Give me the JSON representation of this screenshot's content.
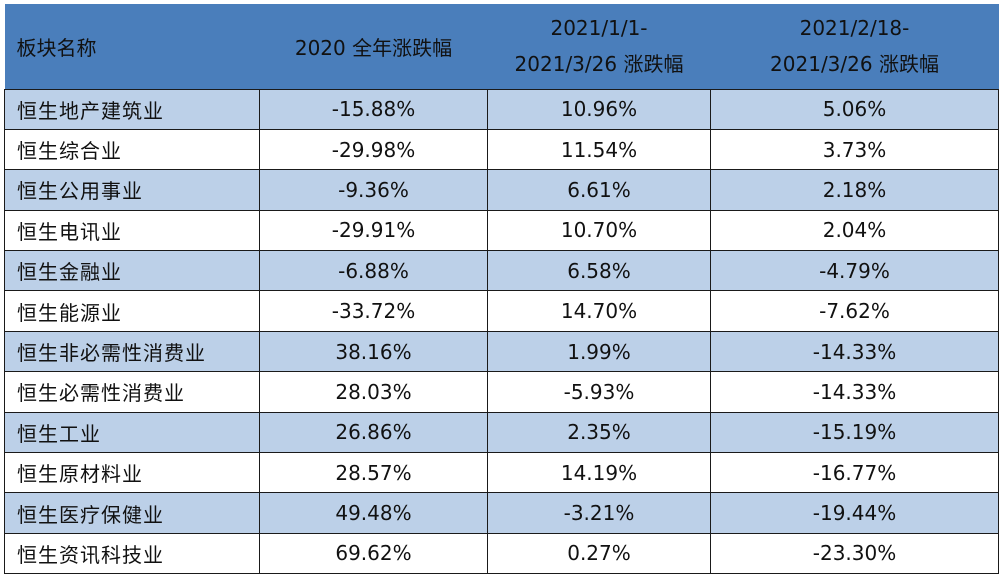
{
  "header": {
    "col_name": "板块名称",
    "col_2020": "2020 全年涨跌幅",
    "col_ytd_line1": "2021/1/1-",
    "col_ytd_line2": "2021/3/26 涨跌幅",
    "col_feb_line1": "2021/2/18-",
    "col_feb_line2": "2021/3/26 涨跌幅"
  },
  "rows": [
    {
      "name": "恒生地产建筑业",
      "y2020": "-15.88%",
      "ytd": "10.96%",
      "feb": "5.06%"
    },
    {
      "name": "恒生综合业",
      "y2020": "-29.98%",
      "ytd": "11.54%",
      "feb": "3.73%"
    },
    {
      "name": "恒生公用事业",
      "y2020": "-9.36%",
      "ytd": "6.61%",
      "feb": "2.18%"
    },
    {
      "name": "恒生电讯业",
      "y2020": "-29.91%",
      "ytd": "10.70%",
      "feb": "2.04%"
    },
    {
      "name": "恒生金融业",
      "y2020": "-6.88%",
      "ytd": "6.58%",
      "feb": "-4.79%"
    },
    {
      "name": "恒生能源业",
      "y2020": "-33.72%",
      "ytd": "14.70%",
      "feb": "-7.62%"
    },
    {
      "name": "恒生非必需性消费业",
      "y2020": "38.16%",
      "ytd": "1.99%",
      "feb": "-14.33%"
    },
    {
      "name": "恒生必需性消费业",
      "y2020": "28.03%",
      "ytd": "-5.93%",
      "feb": "-14.33%"
    },
    {
      "name": "恒生工业",
      "y2020": "26.86%",
      "ytd": "2.35%",
      "feb": "-15.19%"
    },
    {
      "name": "恒生原材料业",
      "y2020": "28.57%",
      "ytd": "14.19%",
      "feb": "-16.77%"
    },
    {
      "name": "恒生医疗保健业",
      "y2020": "49.48%",
      "ytd": "-3.21%",
      "feb": "-19.44%"
    },
    {
      "name": "恒生资讯科技业",
      "y2020": "69.62%",
      "ytd": "0.27%",
      "feb": "-23.30%"
    }
  ],
  "colors": {
    "header_bg": "#4a7ebb",
    "shaded_row_bg": "#bcd0e8",
    "plain_row_bg": "#ffffff",
    "border": "#1a1a1a"
  }
}
